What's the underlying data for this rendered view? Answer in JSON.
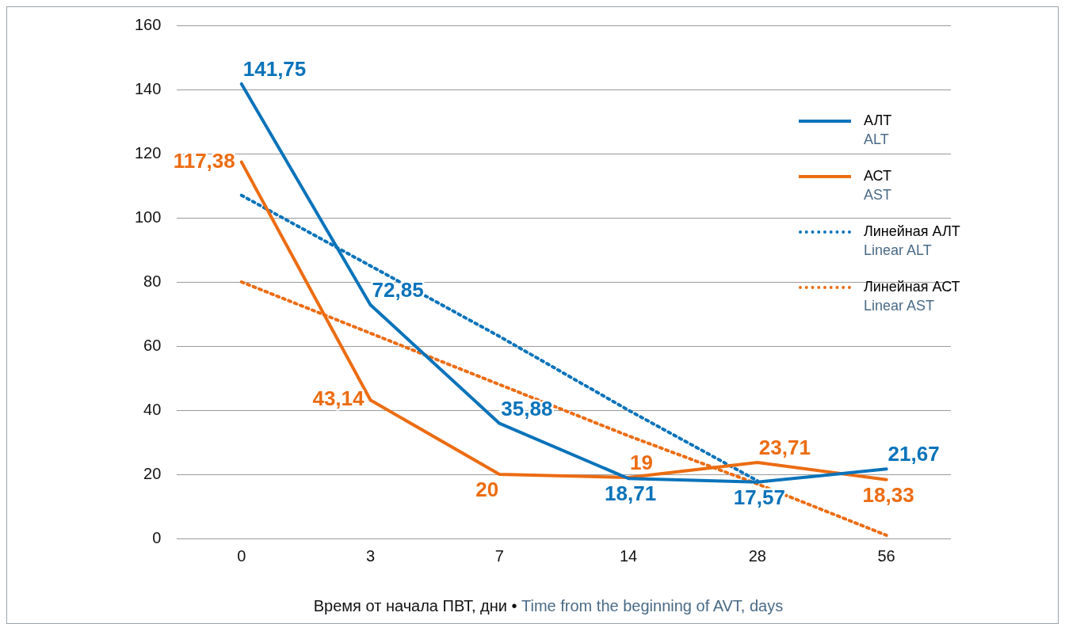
{
  "chart_data": {
    "type": "line",
    "xlabel": "Время от начала ПВТ, дни • Time from the beginning of AVT, days",
    "categories": [
      "0",
      "3",
      "7",
      "14",
      "28",
      "56"
    ],
    "ylim": [
      0,
      160
    ],
    "yticks": [
      0,
      20,
      40,
      60,
      80,
      100,
      120,
      140,
      160
    ],
    "grid": "y",
    "legend": "right",
    "marker": "none",
    "series": [
      {
        "name": "АЛТ\nALT",
        "color": "#0a73ba",
        "values": [
          141.75,
          72.85,
          35.88,
          18.71,
          17.57,
          21.67
        ],
        "value_labels": [
          "141,75",
          "72,85",
          "35,88",
          "18,71",
          "17,57",
          "21,67"
        ],
        "line_style": "solid"
      },
      {
        "name": "АСТ\nAST",
        "color": "#ec6c12",
        "values": [
          117.38,
          43.14,
          20,
          19,
          23.71,
          18.33
        ],
        "value_labels": [
          "117,38",
          "43,14",
          "20",
          "19",
          "23,71",
          "18,33"
        ],
        "line_style": "solid"
      },
      {
        "name": "Линейная АЛТ\nLinear ALT",
        "color": "#0a73ba",
        "values": [
          107,
          85,
          63,
          40,
          18,
          null
        ],
        "line_style": "dotted"
      },
      {
        "name": "Линейная АСТ\nLinear AST",
        "color": "#ec6c12",
        "values": [
          80,
          64,
          48,
          32,
          17,
          1
        ],
        "line_style": "dotted"
      }
    ]
  }
}
